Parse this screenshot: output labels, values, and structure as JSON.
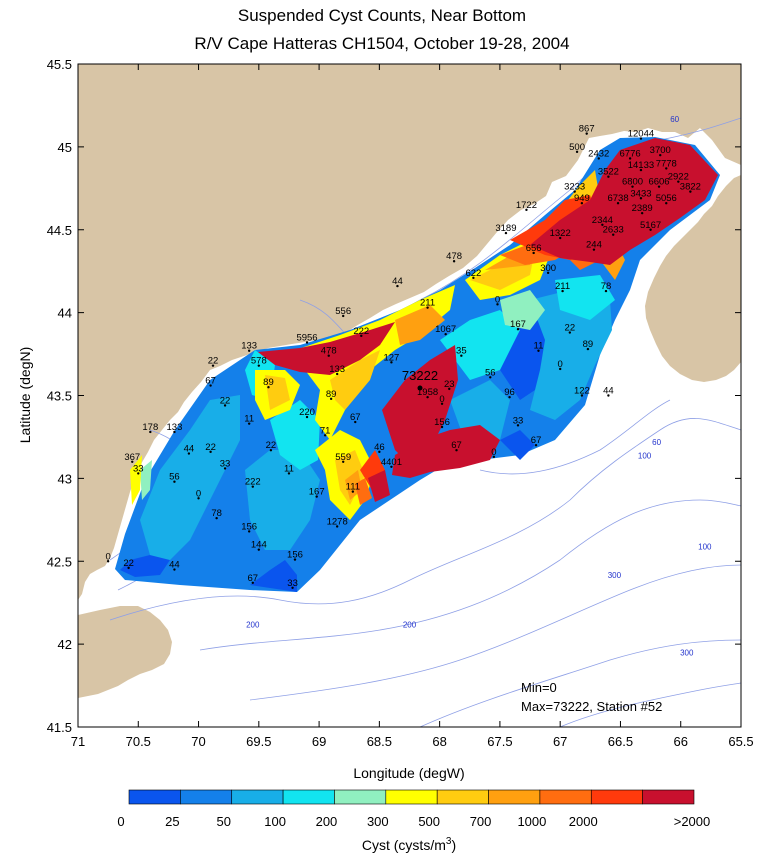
{
  "title": {
    "line1": "Suspended Cyst Counts, Near Bottom",
    "line2": "R/V Cape Hatteras CH1504, October 19-28, 2004"
  },
  "axes": {
    "xlabel": "Longitude (degW)",
    "ylabel": "Latitude (degN)",
    "xticks": [
      "71",
      "70.5",
      "70",
      "69.5",
      "69",
      "68.5",
      "68",
      "67.5",
      "67",
      "66.5",
      "66",
      "65.5"
    ],
    "yticks": [
      "45.5",
      "45",
      "44.5",
      "44",
      "43.5",
      "43",
      "42.5",
      "42",
      "41.5"
    ]
  },
  "colorbar": {
    "label": "Cyst (cysts/m",
    "label_sup": "3",
    "label_end": ")",
    "ticks": [
      "0",
      "25",
      "50",
      "100",
      "200",
      "300",
      "500",
      "700",
      "1000",
      "2000",
      ">2000"
    ],
    "colors": [
      "#0a55ee",
      "#1480ea",
      "#18aee8",
      "#12e4f0",
      "#90f0c0",
      "#ffff00",
      "#ffcc10",
      "#ffa010",
      "#ff6d10",
      "#ff3a0c",
      "#c8102e"
    ]
  },
  "annotations": {
    "min": "Min=0",
    "max": "Max=73222, Station #52",
    "peak": "73222"
  },
  "colors": {
    "land": "#d8c5a6",
    "water": "#ffffff",
    "bathymetry": "#8fa0e6",
    "high": "#c8102e"
  },
  "chart_data": {
    "type": "contour map",
    "xlim": [
      71,
      65.5
    ],
    "ylim": [
      41.5,
      45.5
    ],
    "min_value": 0,
    "max_value": 73222,
    "max_station": 52,
    "stations": [
      {
        "lon": 66.78,
        "lat": 45.08,
        "v": "867"
      },
      {
        "lon": 66.33,
        "lat": 45.05,
        "v": "12044"
      },
      {
        "lon": 66.86,
        "lat": 44.97,
        "v": "500"
      },
      {
        "lon": 66.17,
        "lat": 44.95,
        "v": "3700"
      },
      {
        "lon": 66.68,
        "lat": 44.93,
        "v": "2432"
      },
      {
        "lon": 66.42,
        "lat": 44.93,
        "v": "6776"
      },
      {
        "lon": 66.12,
        "lat": 44.87,
        "v": "7778"
      },
      {
        "lon": 66.33,
        "lat": 44.86,
        "v": "14133"
      },
      {
        "lon": 66.6,
        "lat": 44.82,
        "v": "3522"
      },
      {
        "lon": 66.02,
        "lat": 44.79,
        "v": "2922"
      },
      {
        "lon": 66.4,
        "lat": 44.76,
        "v": "6800"
      },
      {
        "lon": 66.18,
        "lat": 44.76,
        "v": "6606"
      },
      {
        "lon": 66.88,
        "lat": 44.73,
        "v": "3233"
      },
      {
        "lon": 65.92,
        "lat": 44.73,
        "v": "3822"
      },
      {
        "lon": 66.33,
        "lat": 44.69,
        "v": "3433"
      },
      {
        "lon": 66.82,
        "lat": 44.66,
        "v": "949"
      },
      {
        "lon": 66.52,
        "lat": 44.66,
        "v": "6738"
      },
      {
        "lon": 66.12,
        "lat": 44.66,
        "v": "5056"
      },
      {
        "lon": 67.28,
        "lat": 44.62,
        "v": "1722"
      },
      {
        "lon": 66.32,
        "lat": 44.6,
        "v": "2389"
      },
      {
        "lon": 66.65,
        "lat": 44.53,
        "v": "2344"
      },
      {
        "lon": 66.25,
        "lat": 44.5,
        "v": "5167"
      },
      {
        "lon": 66.56,
        "lat": 44.47,
        "v": "2633"
      },
      {
        "lon": 67.45,
        "lat": 44.48,
        "v": "3189"
      },
      {
        "lon": 67.0,
        "lat": 44.45,
        "v": "1322"
      },
      {
        "lon": 67.22,
        "lat": 44.36,
        "v": "656"
      },
      {
        "lon": 66.72,
        "lat": 44.38,
        "v": "244"
      },
      {
        "lon": 67.88,
        "lat": 44.31,
        "v": "478"
      },
      {
        "lon": 67.1,
        "lat": 44.24,
        "v": "300"
      },
      {
        "lon": 67.72,
        "lat": 44.21,
        "v": "622"
      },
      {
        "lon": 66.98,
        "lat": 44.13,
        "v": "211"
      },
      {
        "lon": 66.62,
        "lat": 44.13,
        "v": "78"
      },
      {
        "lon": 68.35,
        "lat": 44.16,
        "v": "44"
      },
      {
        "lon": 68.1,
        "lat": 44.03,
        "v": "211"
      },
      {
        "lon": 67.52,
        "lat": 44.05,
        "v": "0"
      },
      {
        "lon": 68.8,
        "lat": 43.98,
        "v": "556"
      },
      {
        "lon": 67.35,
        "lat": 43.9,
        "v": "167"
      },
      {
        "lon": 66.92,
        "lat": 43.88,
        "v": "22"
      },
      {
        "lon": 68.65,
        "lat": 43.86,
        "v": "222"
      },
      {
        "lon": 67.95,
        "lat": 43.87,
        "v": "1067"
      },
      {
        "lon": 69.1,
        "lat": 43.82,
        "v": "5956"
      },
      {
        "lon": 67.18,
        "lat": 43.77,
        "v": "11"
      },
      {
        "lon": 66.77,
        "lat": 43.78,
        "v": "89"
      },
      {
        "lon": 69.58,
        "lat": 43.77,
        "v": "133"
      },
      {
        "lon": 67.82,
        "lat": 43.74,
        "v": "35"
      },
      {
        "lon": 68.92,
        "lat": 43.74,
        "v": "478"
      },
      {
        "lon": 68.4,
        "lat": 43.7,
        "v": "127"
      },
      {
        "lon": 69.5,
        "lat": 43.68,
        "v": "578"
      },
      {
        "lon": 69.88,
        "lat": 43.68,
        "v": "22"
      },
      {
        "lon": 67.0,
        "lat": 43.66,
        "v": "0"
      },
      {
        "lon": 68.85,
        "lat": 43.63,
        "v": "133"
      },
      {
        "lon": 67.58,
        "lat": 43.61,
        "v": "56"
      },
      {
        "lon": 68.2,
        "lat": 43.57,
        "v": "73222"
      },
      {
        "lon": 69.9,
        "lat": 43.56,
        "v": "67"
      },
      {
        "lon": 69.42,
        "lat": 43.55,
        "v": "89"
      },
      {
        "lon": 67.92,
        "lat": 43.54,
        "v": "23"
      },
      {
        "lon": 66.82,
        "lat": 43.5,
        "v": "122"
      },
      {
        "lon": 66.6,
        "lat": 43.5,
        "v": "44"
      },
      {
        "lon": 68.1,
        "lat": 43.49,
        "v": "1958"
      },
      {
        "lon": 67.42,
        "lat": 43.49,
        "v": "96"
      },
      {
        "lon": 68.9,
        "lat": 43.48,
        "v": "89"
      },
      {
        "lon": 69.78,
        "lat": 43.44,
        "v": "22"
      },
      {
        "lon": 67.98,
        "lat": 43.45,
        "v": "0"
      },
      {
        "lon": 69.1,
        "lat": 43.37,
        "v": "220"
      },
      {
        "lon": 69.58,
        "lat": 43.33,
        "v": "11"
      },
      {
        "lon": 68.7,
        "lat": 43.34,
        "v": "67"
      },
      {
        "lon": 67.35,
        "lat": 43.32,
        "v": "33"
      },
      {
        "lon": 67.98,
        "lat": 43.31,
        "v": "156"
      },
      {
        "lon": 70.4,
        "lat": 43.28,
        "v": "178"
      },
      {
        "lon": 70.2,
        "lat": 43.28,
        "v": "133"
      },
      {
        "lon": 68.95,
        "lat": 43.26,
        "v": "71"
      },
      {
        "lon": 67.2,
        "lat": 43.2,
        "v": "67"
      },
      {
        "lon": 69.4,
        "lat": 43.17,
        "v": "22"
      },
      {
        "lon": 69.9,
        "lat": 43.16,
        "v": "22"
      },
      {
        "lon": 67.86,
        "lat": 43.17,
        "v": "67"
      },
      {
        "lon": 70.08,
        "lat": 43.15,
        "v": "44"
      },
      {
        "lon": 68.5,
        "lat": 43.16,
        "v": "46"
      },
      {
        "lon": 67.55,
        "lat": 43.13,
        "v": "0"
      },
      {
        "lon": 70.55,
        "lat": 43.1,
        "v": "367"
      },
      {
        "lon": 68.8,
        "lat": 43.1,
        "v": "559"
      },
      {
        "lon": 70.5,
        "lat": 43.03,
        "v": "33"
      },
      {
        "lon": 69.78,
        "lat": 43.06,
        "v": "33"
      },
      {
        "lon": 68.4,
        "lat": 43.07,
        "v": "4401"
      },
      {
        "lon": 69.25,
        "lat": 43.03,
        "v": "11"
      },
      {
        "lon": 70.2,
        "lat": 42.98,
        "v": "56"
      },
      {
        "lon": 69.55,
        "lat": 42.95,
        "v": "222"
      },
      {
        "lon": 68.72,
        "lat": 42.92,
        "v": "111"
      },
      {
        "lon": 69.02,
        "lat": 42.89,
        "v": "167"
      },
      {
        "lon": 70.0,
        "lat": 42.88,
        "v": "0"
      },
      {
        "lon": 69.85,
        "lat": 42.76,
        "v": "78"
      },
      {
        "lon": 68.85,
        "lat": 42.71,
        "v": "1278"
      },
      {
        "lon": 69.58,
        "lat": 42.68,
        "v": "156"
      },
      {
        "lon": 69.5,
        "lat": 42.57,
        "v": "144"
      },
      {
        "lon": 69.2,
        "lat": 42.51,
        "v": "156"
      },
      {
        "lon": 70.75,
        "lat": 42.5,
        "v": "0"
      },
      {
        "lon": 70.58,
        "lat": 42.46,
        "v": "22"
      },
      {
        "lon": 70.2,
        "lat": 42.45,
        "v": "44"
      },
      {
        "lon": 69.55,
        "lat": 42.37,
        "v": "67"
      },
      {
        "lon": 69.22,
        "lat": 42.34,
        "v": "33"
      }
    ],
    "isobath_labels": [
      {
        "lon": 66.05,
        "lat": 45.15,
        "v": "60"
      },
      {
        "lon": 66.2,
        "lat": 43.2,
        "v": "60"
      },
      {
        "lon": 66.3,
        "lat": 43.12,
        "v": "100"
      },
      {
        "lon": 65.8,
        "lat": 42.57,
        "v": "100"
      },
      {
        "lon": 66.55,
        "lat": 42.4,
        "v": "300"
      },
      {
        "lon": 65.95,
        "lat": 41.93,
        "v": "300"
      },
      {
        "lon": 69.55,
        "lat": 42.1,
        "v": "200"
      },
      {
        "lon": 68.25,
        "lat": 42.1,
        "v": "200"
      }
    ]
  }
}
